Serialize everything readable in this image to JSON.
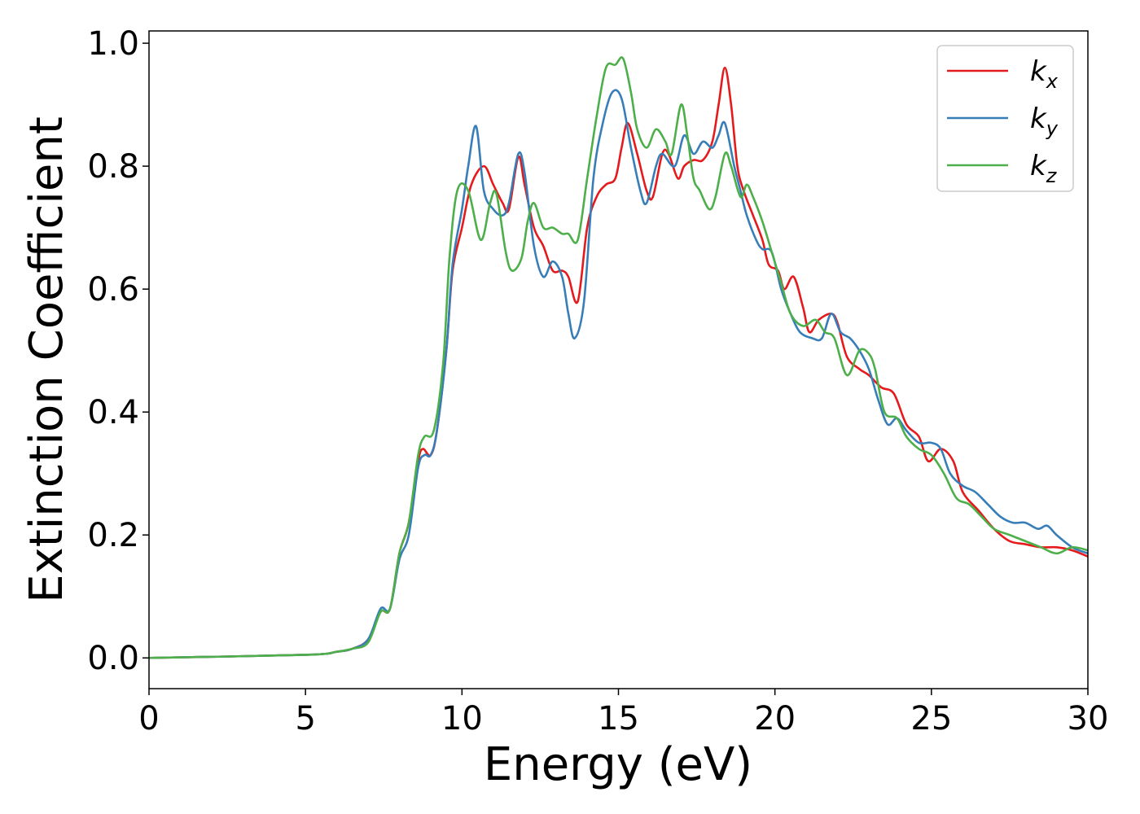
{
  "chart_data": {
    "type": "line",
    "xlabel": "Energy (eV)",
    "ylabel": "Extinction Coefficient",
    "xlim": [
      0,
      30
    ],
    "ylim": [
      -0.05,
      1.02
    ],
    "xticks": [
      0,
      5,
      10,
      15,
      20,
      25,
      30
    ],
    "xtick_labels": [
      "0",
      "5",
      "10",
      "15",
      "20",
      "25",
      "30"
    ],
    "yticks": [
      0.0,
      0.2,
      0.4,
      0.6,
      0.8,
      1.0
    ],
    "ytick_labels": [
      "0.0",
      "0.2",
      "0.4",
      "0.6",
      "0.8",
      "1.0"
    ],
    "grid": false,
    "legend_position": "top-right",
    "series": [
      {
        "name": "k",
        "subscript": "x",
        "color": "#e41a1c",
        "points": [
          [
            0,
            0.0
          ],
          [
            5,
            0.005
          ],
          [
            6,
            0.01
          ],
          [
            6.5,
            0.015
          ],
          [
            7,
            0.03
          ],
          [
            7.4,
            0.075
          ],
          [
            7.7,
            0.08
          ],
          [
            8,
            0.17
          ],
          [
            8.3,
            0.22
          ],
          [
            8.6,
            0.32
          ],
          [
            8.75,
            0.34
          ],
          [
            9,
            0.33
          ],
          [
            9.2,
            0.37
          ],
          [
            9.5,
            0.5
          ],
          [
            9.7,
            0.63
          ],
          [
            10,
            0.7
          ],
          [
            10.3,
            0.77
          ],
          [
            10.7,
            0.8
          ],
          [
            11,
            0.77
          ],
          [
            11.3,
            0.74
          ],
          [
            11.5,
            0.73
          ],
          [
            11.8,
            0.815
          ],
          [
            12,
            0.77
          ],
          [
            12.3,
            0.7
          ],
          [
            12.6,
            0.67
          ],
          [
            12.9,
            0.63
          ],
          [
            13.2,
            0.63
          ],
          [
            13.4,
            0.62
          ],
          [
            13.7,
            0.58
          ],
          [
            14,
            0.7
          ],
          [
            14.3,
            0.75
          ],
          [
            14.6,
            0.77
          ],
          [
            14.9,
            0.78
          ],
          [
            15.1,
            0.83
          ],
          [
            15.3,
            0.87
          ],
          [
            15.6,
            0.82
          ],
          [
            15.9,
            0.76
          ],
          [
            16.1,
            0.75
          ],
          [
            16.4,
            0.82
          ],
          [
            16.6,
            0.82
          ],
          [
            16.9,
            0.78
          ],
          [
            17.1,
            0.8
          ],
          [
            17.4,
            0.81
          ],
          [
            17.7,
            0.81
          ],
          [
            18,
            0.84
          ],
          [
            18.2,
            0.9
          ],
          [
            18.4,
            0.96
          ],
          [
            18.6,
            0.9
          ],
          [
            18.8,
            0.8
          ],
          [
            19,
            0.76
          ],
          [
            19.3,
            0.72
          ],
          [
            19.6,
            0.68
          ],
          [
            19.8,
            0.64
          ],
          [
            20.1,
            0.63
          ],
          [
            20.3,
            0.6
          ],
          [
            20.6,
            0.62
          ],
          [
            20.9,
            0.57
          ],
          [
            21.1,
            0.53
          ],
          [
            21.4,
            0.55
          ],
          [
            21.8,
            0.56
          ],
          [
            22,
            0.545
          ],
          [
            22.3,
            0.49
          ],
          [
            22.7,
            0.47
          ],
          [
            23,
            0.46
          ],
          [
            23.4,
            0.44
          ],
          [
            23.8,
            0.43
          ],
          [
            24.2,
            0.38
          ],
          [
            24.6,
            0.36
          ],
          [
            24.9,
            0.32
          ],
          [
            25.3,
            0.34
          ],
          [
            25.7,
            0.32
          ],
          [
            26,
            0.27
          ],
          [
            26.5,
            0.24
          ],
          [
            27,
            0.21
          ],
          [
            27.5,
            0.19
          ],
          [
            28,
            0.185
          ],
          [
            28.5,
            0.18
          ],
          [
            29,
            0.18
          ],
          [
            29.5,
            0.175
          ],
          [
            30,
            0.165
          ]
        ]
      },
      {
        "name": "k",
        "subscript": "y",
        "color": "#377eb8",
        "points": [
          [
            0,
            0.0
          ],
          [
            5,
            0.005
          ],
          [
            6,
            0.01
          ],
          [
            6.5,
            0.015
          ],
          [
            7,
            0.03
          ],
          [
            7.4,
            0.08
          ],
          [
            7.7,
            0.08
          ],
          [
            8,
            0.16
          ],
          [
            8.3,
            0.2
          ],
          [
            8.6,
            0.31
          ],
          [
            8.8,
            0.33
          ],
          [
            9,
            0.33
          ],
          [
            9.2,
            0.37
          ],
          [
            9.5,
            0.5
          ],
          [
            9.7,
            0.64
          ],
          [
            10,
            0.73
          ],
          [
            10.2,
            0.8
          ],
          [
            10.45,
            0.865
          ],
          [
            10.7,
            0.76
          ],
          [
            11,
            0.73
          ],
          [
            11.3,
            0.72
          ],
          [
            11.5,
            0.74
          ],
          [
            11.8,
            0.82
          ],
          [
            12,
            0.79
          ],
          [
            12.3,
            0.67
          ],
          [
            12.6,
            0.62
          ],
          [
            12.9,
            0.645
          ],
          [
            13.2,
            0.62
          ],
          [
            13.4,
            0.56
          ],
          [
            13.6,
            0.52
          ],
          [
            13.9,
            0.58
          ],
          [
            14.2,
            0.78
          ],
          [
            14.5,
            0.87
          ],
          [
            14.8,
            0.92
          ],
          [
            15.1,
            0.91
          ],
          [
            15.4,
            0.83
          ],
          [
            15.7,
            0.76
          ],
          [
            15.9,
            0.74
          ],
          [
            16.2,
            0.8
          ],
          [
            16.4,
            0.82
          ],
          [
            16.8,
            0.8
          ],
          [
            17.1,
            0.85
          ],
          [
            17.4,
            0.82
          ],
          [
            17.7,
            0.84
          ],
          [
            18,
            0.83
          ],
          [
            18.2,
            0.85
          ],
          [
            18.4,
            0.87
          ],
          [
            18.7,
            0.8
          ],
          [
            18.9,
            0.76
          ],
          [
            19.1,
            0.72
          ],
          [
            19.4,
            0.68
          ],
          [
            19.6,
            0.665
          ],
          [
            19.9,
            0.66
          ],
          [
            20.2,
            0.6
          ],
          [
            20.5,
            0.56
          ],
          [
            20.8,
            0.53
          ],
          [
            21.2,
            0.52
          ],
          [
            21.5,
            0.52
          ],
          [
            21.8,
            0.56
          ],
          [
            22.1,
            0.53
          ],
          [
            22.4,
            0.52
          ],
          [
            22.7,
            0.5
          ],
          [
            23,
            0.47
          ],
          [
            23.3,
            0.42
          ],
          [
            23.6,
            0.38
          ],
          [
            23.9,
            0.39
          ],
          [
            24.2,
            0.37
          ],
          [
            24.6,
            0.35
          ],
          [
            25,
            0.35
          ],
          [
            25.3,
            0.34
          ],
          [
            25.6,
            0.3
          ],
          [
            26,
            0.28
          ],
          [
            26.4,
            0.27
          ],
          [
            26.8,
            0.25
          ],
          [
            27.2,
            0.23
          ],
          [
            27.6,
            0.22
          ],
          [
            28,
            0.22
          ],
          [
            28.4,
            0.21
          ],
          [
            28.7,
            0.215
          ],
          [
            29,
            0.2
          ],
          [
            29.5,
            0.18
          ],
          [
            30,
            0.17
          ]
        ]
      },
      {
        "name": "k",
        "subscript": "z",
        "color": "#4daf4a",
        "points": [
          [
            0,
            0.0
          ],
          [
            5,
            0.005
          ],
          [
            6,
            0.01
          ],
          [
            6.5,
            0.015
          ],
          [
            7,
            0.025
          ],
          [
            7.4,
            0.075
          ],
          [
            7.7,
            0.08
          ],
          [
            8,
            0.17
          ],
          [
            8.3,
            0.22
          ],
          [
            8.6,
            0.33
          ],
          [
            8.8,
            0.36
          ],
          [
            9.1,
            0.37
          ],
          [
            9.4,
            0.48
          ],
          [
            9.6,
            0.65
          ],
          [
            9.85,
            0.76
          ],
          [
            10.2,
            0.76
          ],
          [
            10.6,
            0.68
          ],
          [
            10.9,
            0.74
          ],
          [
            11.1,
            0.755
          ],
          [
            11.4,
            0.66
          ],
          [
            11.6,
            0.63
          ],
          [
            11.9,
            0.65
          ],
          [
            12.1,
            0.71
          ],
          [
            12.3,
            0.74
          ],
          [
            12.6,
            0.7
          ],
          [
            12.9,
            0.7
          ],
          [
            13.2,
            0.69
          ],
          [
            13.4,
            0.69
          ],
          [
            13.7,
            0.68
          ],
          [
            14,
            0.78
          ],
          [
            14.3,
            0.88
          ],
          [
            14.6,
            0.96
          ],
          [
            14.9,
            0.965
          ],
          [
            15.15,
            0.975
          ],
          [
            15.4,
            0.92
          ],
          [
            15.6,
            0.86
          ],
          [
            15.9,
            0.83
          ],
          [
            16.2,
            0.86
          ],
          [
            16.5,
            0.84
          ],
          [
            16.7,
            0.82
          ],
          [
            17,
            0.9
          ],
          [
            17.2,
            0.85
          ],
          [
            17.4,
            0.78
          ],
          [
            17.6,
            0.76
          ],
          [
            17.9,
            0.73
          ],
          [
            18.1,
            0.75
          ],
          [
            18.4,
            0.82
          ],
          [
            18.6,
            0.8
          ],
          [
            18.9,
            0.75
          ],
          [
            19.1,
            0.77
          ],
          [
            19.3,
            0.75
          ],
          [
            19.6,
            0.71
          ],
          [
            19.9,
            0.66
          ],
          [
            20.2,
            0.61
          ],
          [
            20.5,
            0.56
          ],
          [
            20.9,
            0.54
          ],
          [
            21.3,
            0.55
          ],
          [
            21.6,
            0.53
          ],
          [
            21.9,
            0.52
          ],
          [
            22.3,
            0.46
          ],
          [
            22.7,
            0.5
          ],
          [
            23,
            0.495
          ],
          [
            23.2,
            0.47
          ],
          [
            23.5,
            0.4
          ],
          [
            23.9,
            0.39
          ],
          [
            24.2,
            0.36
          ],
          [
            24.6,
            0.34
          ],
          [
            25,
            0.33
          ],
          [
            25.4,
            0.3
          ],
          [
            25.8,
            0.26
          ],
          [
            26.2,
            0.25
          ],
          [
            26.6,
            0.23
          ],
          [
            27,
            0.21
          ],
          [
            27.5,
            0.2
          ],
          [
            28,
            0.19
          ],
          [
            28.5,
            0.18
          ],
          [
            29,
            0.17
          ],
          [
            29.5,
            0.18
          ],
          [
            30,
            0.175
          ]
        ]
      }
    ]
  }
}
